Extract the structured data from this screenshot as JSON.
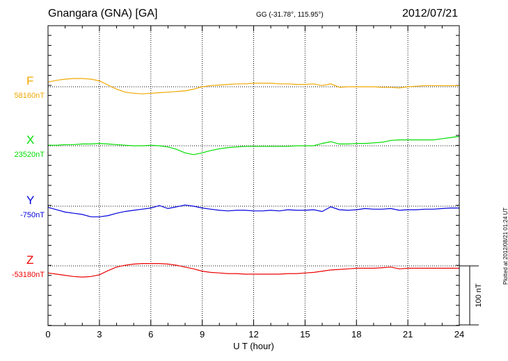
{
  "header": {
    "station": "Gnangara (GNA)  [GA]",
    "coords": "GG (-31.78°, 115.95°)",
    "date": "2012/07/21",
    "plotted": "Plotted at 2012/08/21 01:24 UT"
  },
  "chart_data": {
    "type": "line",
    "xlabel": "U T (hour)",
    "xlim": [
      0,
      24
    ],
    "xticks": [
      "0",
      "3",
      "6",
      "9",
      "12",
      "15",
      "18",
      "21",
      "24"
    ],
    "grid": true,
    "scale_bar": {
      "value": 100,
      "label": "100 nT"
    },
    "series": [
      {
        "name": "F",
        "baseline": "58160nT",
        "color": "#f0a800",
        "x": [
          0,
          0.5,
          1,
          1.5,
          2,
          2.5,
          3,
          3.5,
          4,
          4.5,
          5,
          5.5,
          6,
          6.5,
          7,
          7.5,
          8,
          8.5,
          9,
          9.5,
          10,
          10.5,
          11,
          11.5,
          12,
          12.5,
          13,
          13.5,
          14,
          14.5,
          15,
          15.5,
          16,
          16.5,
          17,
          17.5,
          18,
          18.5,
          19,
          19.5,
          20,
          20.5,
          21,
          21.5,
          22,
          22.5,
          23,
          23.5,
          24
        ],
        "y": [
          8,
          11,
          13,
          14,
          14,
          13,
          10,
          3,
          -4,
          -9,
          -11,
          -12,
          -11,
          -10,
          -9,
          -8,
          -7,
          -4,
          0,
          2,
          3,
          4,
          5,
          5,
          6,
          6,
          6,
          5,
          5,
          4,
          4,
          5,
          2,
          5,
          -1,
          0,
          0,
          0,
          0,
          -1,
          -1,
          -2,
          0,
          1,
          2,
          2,
          2,
          2,
          2
        ]
      },
      {
        "name": "X",
        "baseline": "23520nT",
        "color": "#00dd00",
        "x": [
          0,
          0.5,
          1,
          1.5,
          2,
          2.5,
          3,
          3.5,
          4,
          4.5,
          5,
          5.5,
          6,
          6.5,
          7,
          7.5,
          8,
          8.5,
          9,
          9.5,
          10,
          10.5,
          11,
          11.5,
          12,
          12.5,
          13,
          13.5,
          14,
          14.5,
          15,
          15.5,
          16,
          16.5,
          17,
          17.5,
          18,
          18.5,
          19,
          19.5,
          20,
          20.5,
          21,
          21.5,
          22,
          22.5,
          23,
          23.5,
          24
        ],
        "y": [
          1,
          1,
          2,
          2,
          3,
          3,
          4,
          3,
          2,
          1,
          0,
          0,
          1,
          0,
          -2,
          -6,
          -12,
          -15,
          -12,
          -8,
          -5,
          -3,
          -2,
          -1,
          -1,
          -1,
          -1,
          -1,
          -1,
          0,
          0,
          0,
          4,
          7,
          3,
          3,
          4,
          4,
          5,
          6,
          9,
          10,
          10,
          10,
          10,
          10,
          12,
          14,
          16
        ]
      },
      {
        "name": "Y",
        "baseline": "-750nT",
        "color": "#0000dd",
        "x": [
          0,
          0.5,
          1,
          1.5,
          2,
          2.5,
          3,
          3.5,
          4,
          4.5,
          5,
          5.5,
          6,
          6.5,
          7,
          7.5,
          8,
          8.5,
          9,
          9.5,
          10,
          10.5,
          11,
          11.5,
          12,
          12.5,
          13,
          13.5,
          14,
          14.5,
          15,
          15.5,
          16,
          16.5,
          17,
          17.5,
          18,
          18.5,
          19,
          19.5,
          20,
          20.5,
          21,
          21.5,
          22,
          22.5,
          23,
          23.5,
          24
        ],
        "y": [
          -2,
          -6,
          -10,
          -12,
          -14,
          -18,
          -18,
          -16,
          -12,
          -9,
          -7,
          -5,
          -3,
          1,
          -4,
          -1,
          2,
          0,
          -3,
          -5,
          -7,
          -8,
          -7,
          -7,
          -8,
          -8,
          -7,
          -8,
          -6,
          -7,
          -7,
          -6,
          -9,
          -1,
          -6,
          -7,
          -6,
          -4,
          -5,
          -5,
          -4,
          -7,
          -6,
          -6,
          -5,
          -5,
          -4,
          -3,
          -3
        ]
      },
      {
        "name": "Z",
        "baseline": "-53180nT",
        "color": "#ee0000",
        "x": [
          0,
          0.5,
          1,
          1.5,
          2,
          2.5,
          3,
          3.5,
          4,
          4.5,
          5,
          5.5,
          6,
          6.5,
          7,
          7.5,
          8,
          8.5,
          9,
          9.5,
          10,
          10.5,
          11,
          11.5,
          12,
          12.5,
          13,
          13.5,
          14,
          14.5,
          15,
          15.5,
          16,
          16.5,
          17,
          17.5,
          18,
          18.5,
          19,
          19.5,
          20,
          20.5,
          21,
          21.5,
          22,
          22.5,
          23,
          23.5,
          24
        ],
        "y": [
          -12,
          -14,
          -16,
          -18,
          -19,
          -18,
          -15,
          -8,
          -2,
          1,
          3,
          4,
          4,
          4,
          3,
          1,
          -2,
          -5,
          -9,
          -11,
          -12,
          -13,
          -13,
          -14,
          -14,
          -14,
          -14,
          -14,
          -13,
          -13,
          -12,
          -11,
          -9,
          -7,
          -6,
          -5,
          -4,
          -4,
          -4,
          -3,
          -2,
          -5,
          -4,
          -4,
          -4,
          -4,
          -4,
          -4,
          -4
        ]
      }
    ]
  }
}
